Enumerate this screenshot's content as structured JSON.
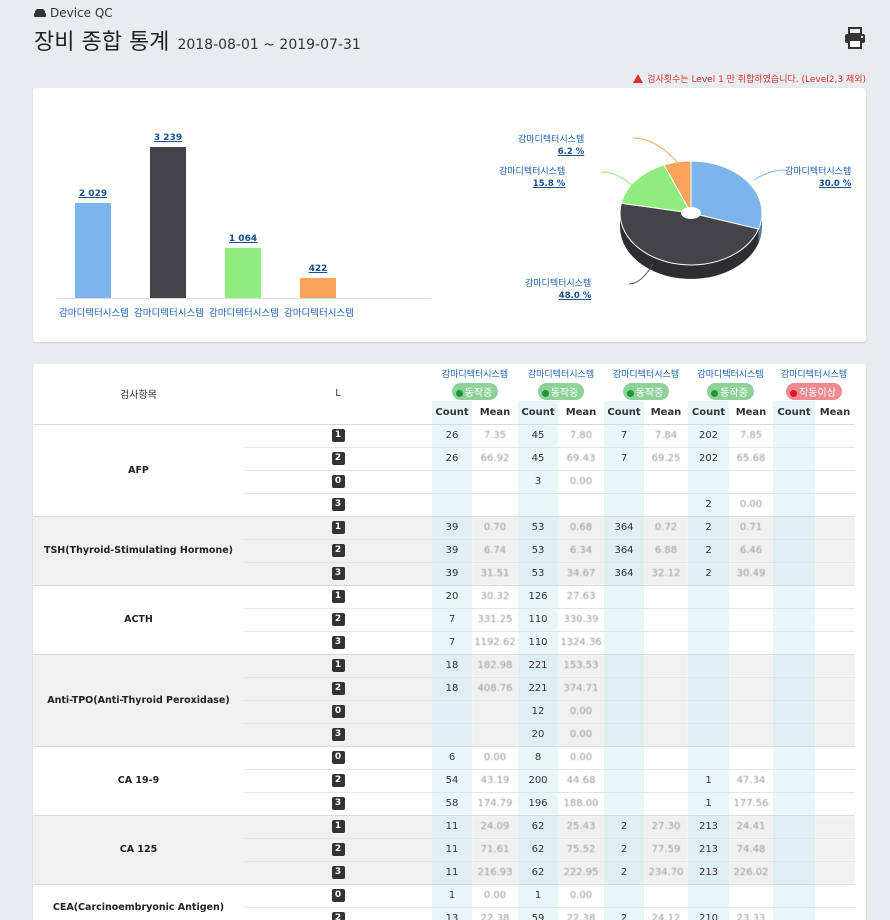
{
  "header": {
    "app_label": "Device QC",
    "page_title": "장비 종합 통계",
    "date_range": "2018-08-01 ~ 2019-07-31",
    "warning": "검사횟수는 Level 1 만 취합하였습니다. (Level2,3 제외)"
  },
  "chart_data": [
    {
      "type": "bar",
      "categories": [
        "감마디텍터시스템",
        "감마디텍터시스템",
        "감마디텍터시스템",
        "감마디텍터시스템"
      ],
      "values": [
        2029,
        3239,
        1064,
        422
      ],
      "value_labels": [
        "2 029",
        "3 239",
        "1 064",
        "422"
      ],
      "colors": [
        "#7cb5ec",
        "#434348",
        "#90ed7d",
        "#f7a35c"
      ],
      "ylim": [
        0,
        3600
      ]
    },
    {
      "type": "pie",
      "slices": [
        {
          "label": "감마디텍터시스템",
          "value": 30.0,
          "pct_label": "30.0 %",
          "color": "#7cb5ec"
        },
        {
          "label": "감마디텍터시스템",
          "value": 48.0,
          "pct_label": "48.0 %",
          "color": "#434348"
        },
        {
          "label": "감마디텍터시스템",
          "value": 15.8,
          "pct_label": "15.8 %",
          "color": "#90ed7d"
        },
        {
          "label": "감마디텍터시스템",
          "value": 6.2,
          "pct_label": "6.2 %",
          "color": "#f7a35c"
        }
      ]
    }
  ],
  "table": {
    "item_header": "검사항목",
    "level_header": "L",
    "devices": [
      {
        "name": "감마디텍터시스템",
        "status": "동작중",
        "state": "ok"
      },
      {
        "name": "감마디텍터시스템",
        "status": "동작중",
        "state": "ok"
      },
      {
        "name": "감마디텍터시스템",
        "status": "동작중",
        "state": "ok"
      },
      {
        "name": "감마디텍터시스템",
        "status": "동작중",
        "state": "ok"
      },
      {
        "name": "감마디텍터시스템",
        "status": "작동이상",
        "state": "err"
      }
    ],
    "count_label": "Count",
    "mean_label": "Mean",
    "groups": [
      {
        "item": "AFP",
        "rows": [
          {
            "level": "1",
            "cells": [
              "26",
              "7.35",
              "45",
              "7.80",
              "7",
              "7.84",
              "202",
              "7.85",
              "",
              ""
            ]
          },
          {
            "level": "2",
            "cells": [
              "26",
              "66.92",
              "45",
              "69.43",
              "7",
              "69.25",
              "202",
              "65.68",
              "",
              ""
            ]
          },
          {
            "level": "0",
            "cells": [
              "",
              "",
              "3",
              "0.00",
              "",
              "",
              "",
              "",
              "",
              ""
            ]
          },
          {
            "level": "3",
            "cells": [
              "",
              "",
              "",
              "",
              "",
              "",
              "2",
              "0.00",
              "",
              ""
            ]
          }
        ]
      },
      {
        "item": "TSH(Thyroid-Stimulating Hormone)",
        "rows": [
          {
            "level": "1",
            "cells": [
              "39",
              "0.70",
              "53",
              "0.68",
              "364",
              "0.72",
              "2",
              "0.71",
              "",
              ""
            ]
          },
          {
            "level": "2",
            "cells": [
              "39",
              "6.74",
              "53",
              "6.34",
              "364",
              "6.88",
              "2",
              "6.46",
              "",
              ""
            ]
          },
          {
            "level": "3",
            "cells": [
              "39",
              "31.51",
              "53",
              "34.67",
              "364",
              "32.12",
              "2",
              "30.49",
              "",
              ""
            ]
          }
        ]
      },
      {
        "item": "ACTH",
        "rows": [
          {
            "level": "1",
            "cells": [
              "20",
              "30.32",
              "126",
              "27.63",
              "",
              "",
              "",
              "",
              "",
              ""
            ]
          },
          {
            "level": "2",
            "cells": [
              "7",
              "331.25",
              "110",
              "330.39",
              "",
              "",
              "",
              "",
              "",
              ""
            ]
          },
          {
            "level": "3",
            "cells": [
              "7",
              "1192.62",
              "110",
              "1324.36",
              "",
              "",
              "",
              "",
              "",
              ""
            ]
          }
        ]
      },
      {
        "item": "Anti-TPO(Anti-Thyroid Peroxidase)",
        "rows": [
          {
            "level": "1",
            "cells": [
              "18",
              "182.98",
              "221",
              "153.53",
              "",
              "",
              "",
              "",
              "",
              ""
            ]
          },
          {
            "level": "2",
            "cells": [
              "18",
              "408.76",
              "221",
              "374.71",
              "",
              "",
              "",
              "",
              "",
              ""
            ]
          },
          {
            "level": "0",
            "cells": [
              "",
              "",
              "12",
              "0.00",
              "",
              "",
              "",
              "",
              "",
              ""
            ]
          },
          {
            "level": "3",
            "cells": [
              "",
              "",
              "20",
              "0.00",
              "",
              "",
              "",
              "",
              "",
              ""
            ]
          }
        ]
      },
      {
        "item": "CA 19-9",
        "rows": [
          {
            "level": "0",
            "cells": [
              "6",
              "0.00",
              "8",
              "0.00",
              "",
              "",
              "",
              "",
              "",
              ""
            ]
          },
          {
            "level": "2",
            "cells": [
              "54",
              "43.19",
              "200",
              "44.68",
              "",
              "",
              "1",
              "47.34",
              "",
              ""
            ]
          },
          {
            "level": "3",
            "cells": [
              "58",
              "174.79",
              "196",
              "188.00",
              "",
              "",
              "1",
              "177.56",
              "",
              ""
            ]
          }
        ]
      },
      {
        "item": "CA 125",
        "rows": [
          {
            "level": "1",
            "cells": [
              "11",
              "24.09",
              "62",
              "25.43",
              "2",
              "27.30",
              "213",
              "24.41",
              "",
              ""
            ]
          },
          {
            "level": "2",
            "cells": [
              "11",
              "71.61",
              "62",
              "75.52",
              "2",
              "77.59",
              "213",
              "74.48",
              "",
              ""
            ]
          },
          {
            "level": "3",
            "cells": [
              "11",
              "216.93",
              "62",
              "222.95",
              "2",
              "234.70",
              "213",
              "226.02",
              "",
              ""
            ]
          }
        ]
      },
      {
        "item": "CEA(Carcinoembryonic Antigen)",
        "rows": [
          {
            "level": "0",
            "cells": [
              "1",
              "0.00",
              "1",
              "0.00",
              "",
              "",
              "",
              "",
              "",
              ""
            ]
          },
          {
            "level": "2",
            "cells": [
              "13",
              "22.38",
              "59",
              "22.38",
              "2",
              "24.12",
              "210",
              "23.33",
              "",
              ""
            ]
          }
        ]
      }
    ]
  }
}
